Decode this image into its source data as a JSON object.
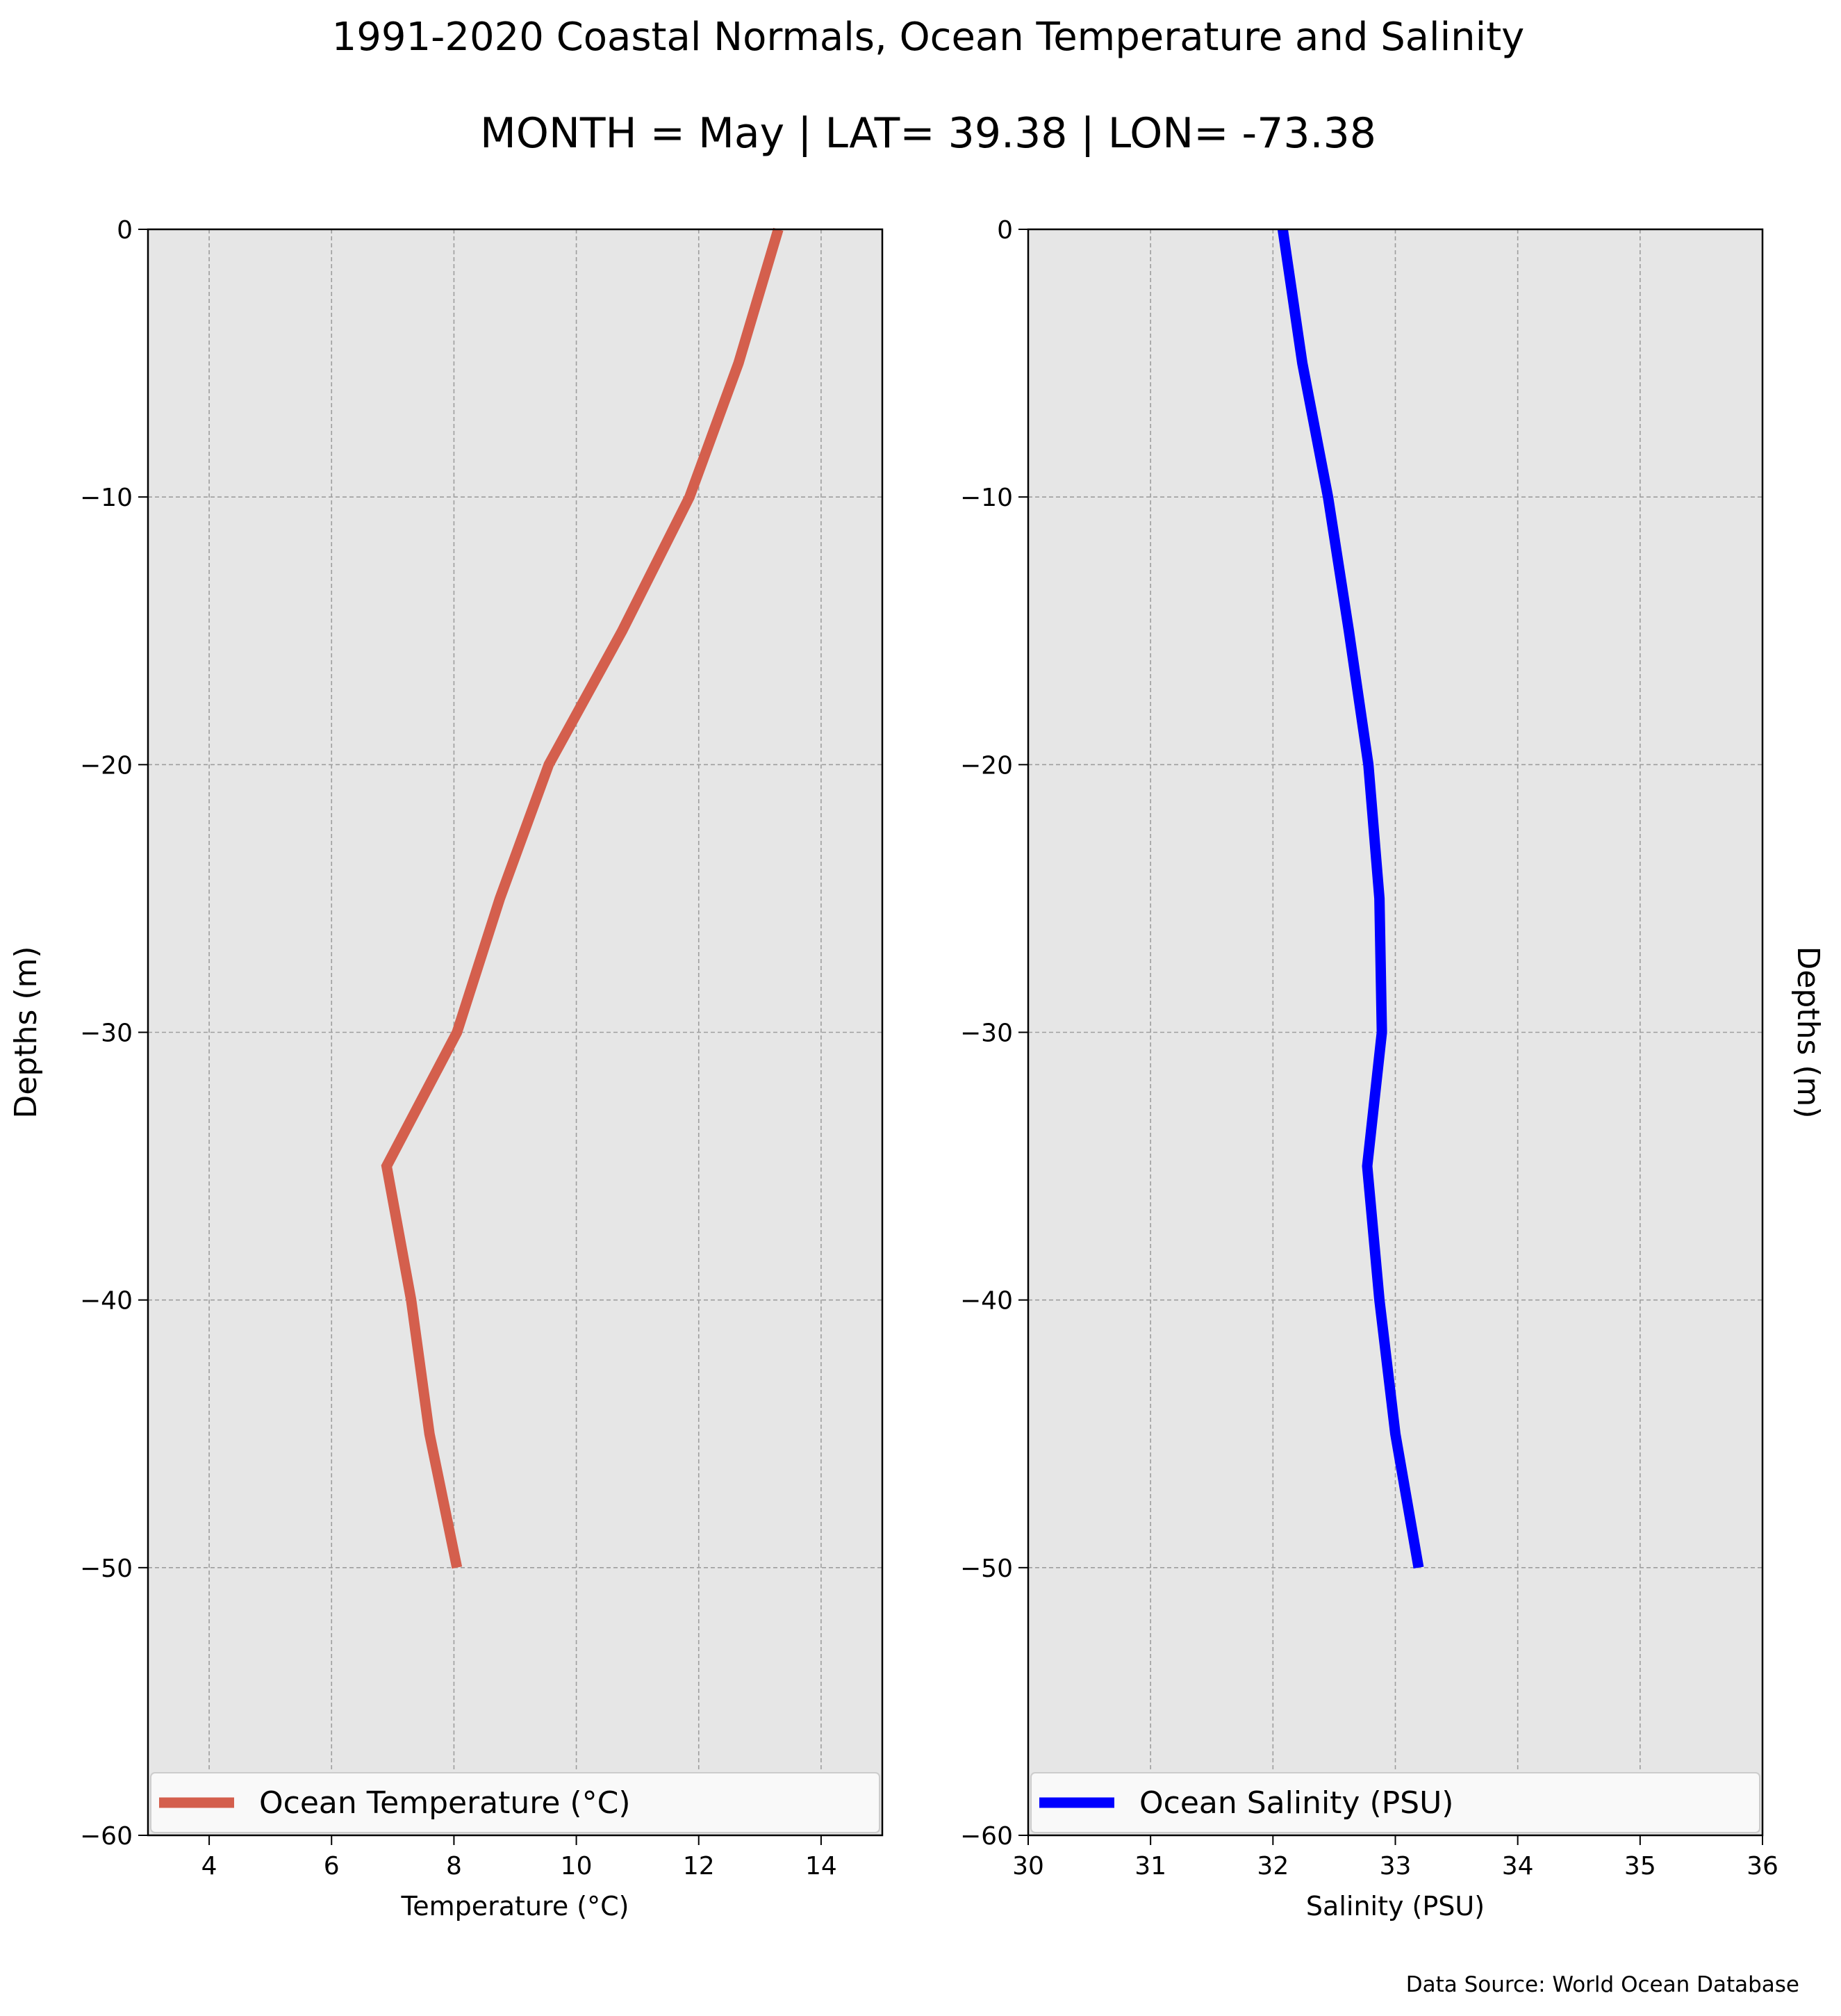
{
  "figure": {
    "title": "1991-2020 Coastal Normals, Ocean Temperature and Salinity",
    "subtitle": "MONTH = May | LAT= 39.38 | LON= -73.38",
    "footer": "Data Source: World Ocean Database"
  },
  "colors": {
    "panel_background": "#e6e6e6",
    "grid": "#9e9e9e",
    "temperature_line": "#d45f4d",
    "salinity_line": "#0000ff"
  },
  "chart_data": [
    {
      "type": "line",
      "xlabel": "Temperature ($^\\circ$C)",
      "xlabel_display": "Temperature (°C)",
      "ylabel": "Depths (m)",
      "xlim": [
        3,
        15
      ],
      "ylim": [
        -60,
        0
      ],
      "xticks": [
        4,
        6,
        8,
        10,
        12,
        14
      ],
      "xtick_labels": [
        "4",
        "6",
        "8",
        "10",
        "12",
        "14"
      ],
      "yticks": [
        0,
        -10,
        -20,
        -30,
        -40,
        -50,
        -60
      ],
      "ytick_labels": [
        "0",
        "−10",
        "−20",
        "−30",
        "−40",
        "−50",
        "−60"
      ],
      "grid": true,
      "legend_position": "bottom",
      "series": [
        {
          "name": "Ocean Temperature (°C)",
          "color": "#d45f4d",
          "x": [
            13.3,
            12.65,
            11.85,
            10.75,
            9.55,
            8.75,
            8.05,
            6.9,
            7.3,
            7.6,
            8.05
          ],
          "y": [
            0,
            -5,
            -10,
            -15,
            -20,
            -25,
            -30,
            -35,
            -40,
            -45,
            -50
          ]
        }
      ]
    },
    {
      "type": "line",
      "xlabel": "Salinity (PSU)",
      "ylabel": "Depths (m)",
      "xlim": [
        30,
        36
      ],
      "ylim": [
        -60,
        0
      ],
      "xticks": [
        30,
        31,
        32,
        33,
        34,
        35,
        36
      ],
      "xtick_labels": [
        "30",
        "31",
        "32",
        "33",
        "34",
        "35",
        "36"
      ],
      "yticks": [
        0,
        -10,
        -20,
        -30,
        -40,
        -50,
        -60
      ],
      "ytick_labels": [
        "0",
        "−10",
        "−20",
        "−30",
        "−40",
        "−50",
        "−60"
      ],
      "grid": true,
      "legend_position": "bottom",
      "series": [
        {
          "name": "Ocean Salinity (PSU)",
          "color": "#0000ff",
          "x": [
            32.08,
            32.24,
            32.45,
            32.62,
            32.78,
            32.87,
            32.89,
            32.77,
            32.87,
            33.0,
            33.19
          ],
          "y": [
            0,
            -5,
            -10,
            -15,
            -20,
            -25,
            -30,
            -35,
            -40,
            -45,
            -50
          ]
        }
      ]
    }
  ]
}
